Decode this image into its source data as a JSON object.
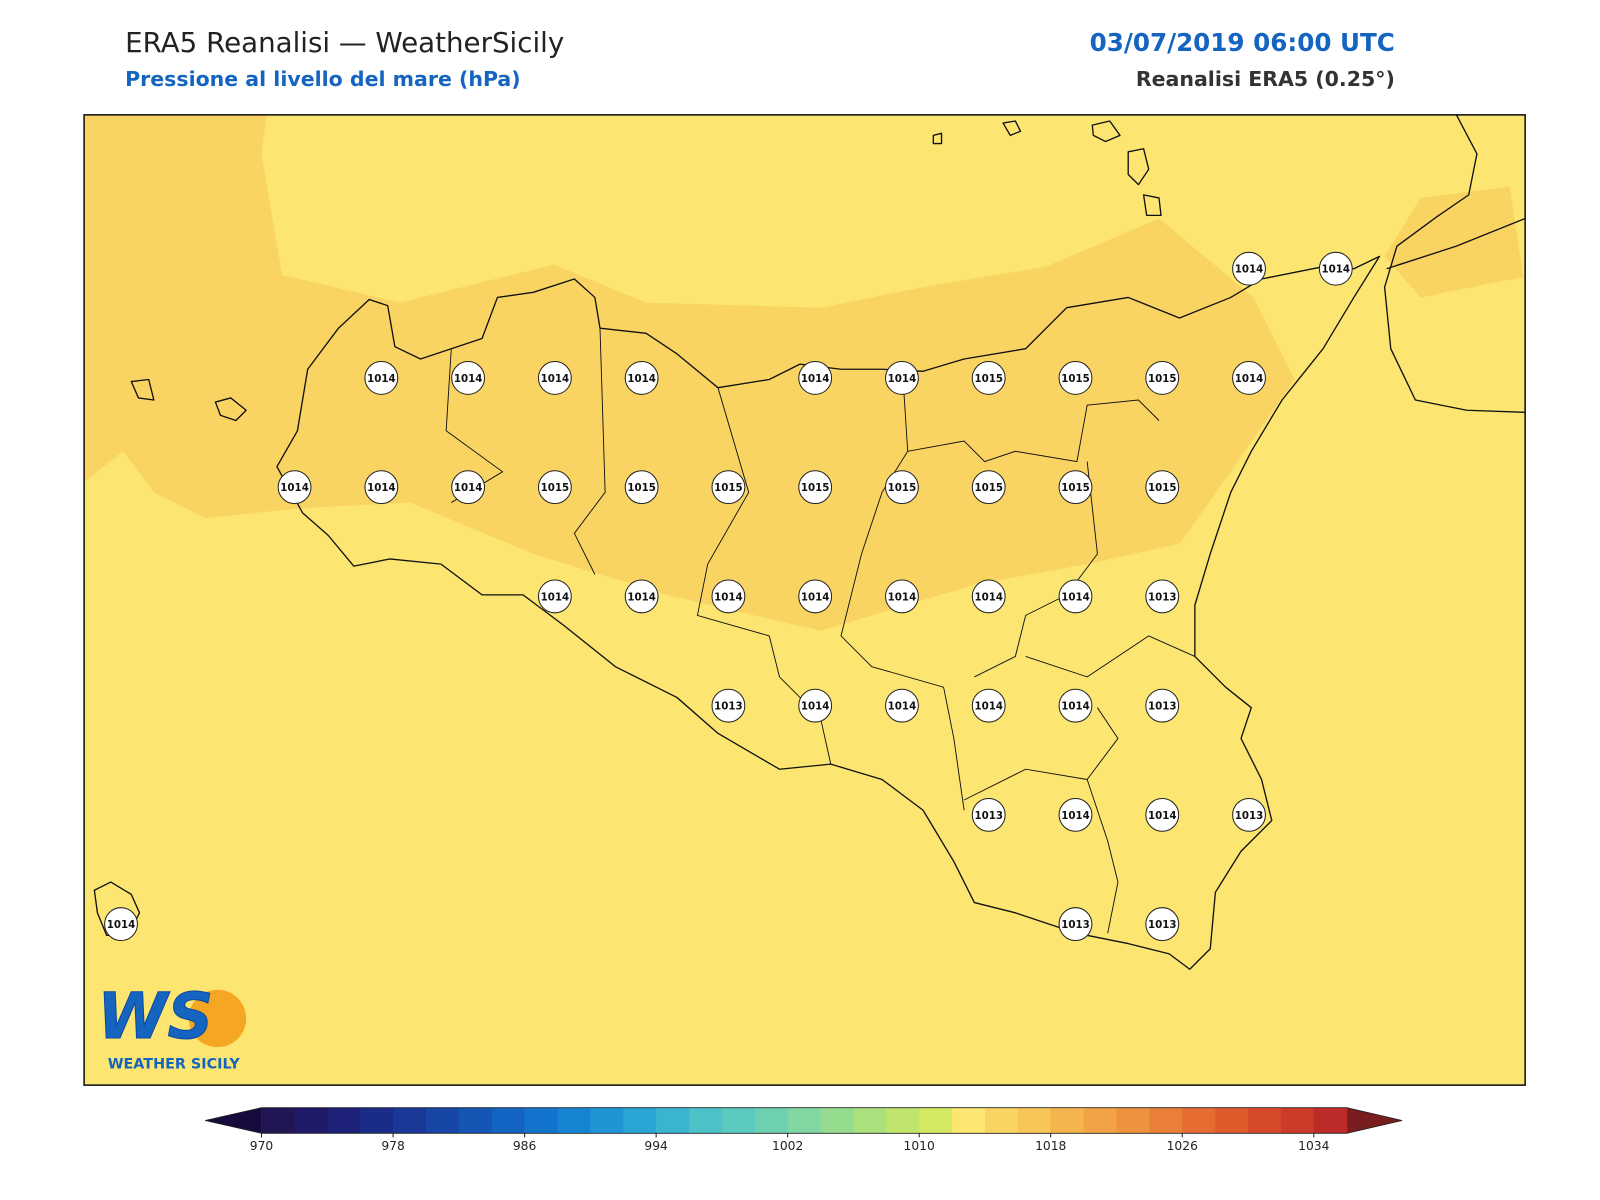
{
  "header": {
    "title": "ERA5 Reanalisi — WeatherSicily",
    "subtitle": "Pressione al livello del mare (hPa)",
    "datetime": "03/07/2019 06:00 UTC",
    "model": "Reanalisi ERA5 (0.25°)"
  },
  "logo": {
    "mark": "WS",
    "name": "WEATHER SICILY"
  },
  "stations": {
    "rows": [
      [
        null,
        null,
        null,
        null,
        null,
        null,
        null,
        null,
        null,
        null,
        null,
        null,
        null,
        1014,
        1014
      ],
      [
        null,
        null,
        null,
        1014,
        1014,
        1014,
        1014,
        null,
        1014,
        1014,
        1015,
        1015,
        1015,
        1014,
        null
      ],
      [
        null,
        null,
        1014,
        1014,
        1014,
        1015,
        1015,
        1015,
        1015,
        1015,
        1015,
        1015,
        1015,
        null,
        null
      ],
      [
        null,
        null,
        null,
        null,
        null,
        1014,
        1014,
        1014,
        1014,
        1014,
        1014,
        1014,
        1013,
        null,
        null
      ],
      [
        null,
        null,
        null,
        null,
        null,
        null,
        null,
        1013,
        1014,
        1014,
        1014,
        1014,
        1013,
        null,
        null
      ],
      [
        null,
        null,
        null,
        null,
        null,
        null,
        null,
        null,
        null,
        null,
        1013,
        1014,
        1014,
        1013,
        null
      ],
      [
        1014,
        null,
        null,
        null,
        null,
        null,
        null,
        null,
        null,
        null,
        null,
        1013,
        1013,
        null,
        null
      ]
    ]
  },
  "colorbar": {
    "lim": [
      970,
      1036
    ],
    "ticks": [
      970,
      978,
      986,
      994,
      1002,
      1010,
      1018,
      1026,
      1034
    ],
    "colors": [
      "#221553",
      "#1f1a68",
      "#1d2178",
      "#1b2b88",
      "#1a3897",
      "#1746a6",
      "#1555b4",
      "#1364c2",
      "#1374cd",
      "#1784d3",
      "#2095d6",
      "#2aa5d3",
      "#3ab4cf",
      "#4bc1c8",
      "#5bcabe",
      "#6dd1b1",
      "#80d7a2",
      "#95dc8f",
      "#abe17c",
      "#c1e46c",
      "#d5e862",
      "#fce570",
      "#fad463",
      "#f8c558",
      "#f5b44e",
      "#f2a345",
      "#ee923e",
      "#ea8037",
      "#e56d31",
      "#df5b2c",
      "#d64a2a",
      "#cc3a29",
      "#bd2b28"
    ],
    "extend_colors": [
      "#160b3c",
      "#7a1d1e"
    ]
  }
}
